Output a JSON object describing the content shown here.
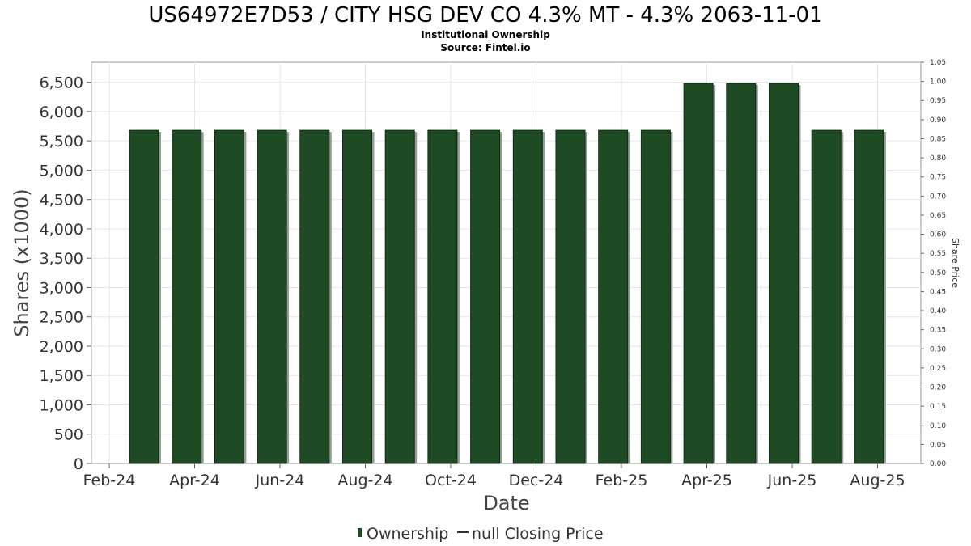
{
  "chart_data": {
    "type": "bar",
    "title": "US64972E7D53 / CITY HSG DEV CO 4.3% MT - 4.3% 2063-11-01",
    "subtitle_lines": [
      "Institutional Ownership",
      "Source: Fintel.io"
    ],
    "xlabel": "Date",
    "ylabel": "Shares (x1000)",
    "y2label": "Share Price",
    "x_tick_labels": [
      "Feb-24",
      "Apr-24",
      "Jun-24",
      "Aug-24",
      "Oct-24",
      "Dec-24",
      "Feb-25",
      "Apr-25",
      "Jun-25",
      "Aug-25"
    ],
    "y_tick_labels": [
      "0",
      "500",
      "1,000",
      "1,500",
      "2,000",
      "2,500",
      "3,000",
      "3,500",
      "4,000",
      "4,500",
      "5,000",
      "5,500",
      "6,000",
      "6,500"
    ],
    "y_ticks": [
      0,
      500,
      1000,
      1500,
      2000,
      2500,
      3000,
      3500,
      4000,
      4500,
      5000,
      5500,
      6000,
      6500
    ],
    "y2_tick_labels": [
      "0.00",
      "0.05",
      "0.10",
      "0.15",
      "0.20",
      "0.25",
      "0.30",
      "0.35",
      "0.40",
      "0.45",
      "0.50",
      "0.55",
      "0.60",
      "0.65",
      "0.70",
      "0.75",
      "0.80",
      "0.85",
      "0.90",
      "0.95",
      "1.00",
      "1.05"
    ],
    "y2_ticks": [
      0,
      0.05,
      0.1,
      0.15,
      0.2,
      0.25,
      0.3,
      0.35,
      0.4,
      0.45,
      0.5,
      0.55,
      0.6,
      0.65,
      0.7,
      0.75,
      0.8,
      0.85,
      0.9,
      0.95,
      1.0,
      1.05
    ],
    "ylim": [
      0,
      6840
    ],
    "y2lim": [
      0,
      1.05
    ],
    "grid": true,
    "legend_position": "bottom-center",
    "series": [
      {
        "name": "Ownership",
        "color": "#1e4a24",
        "values": [
          5680,
          5680,
          5680,
          5680,
          5680,
          5680,
          5680,
          5680,
          5680,
          5680,
          5680,
          5680,
          5680,
          6480,
          6480,
          6480,
          5680,
          5680
        ]
      }
    ],
    "legend": {
      "ownership_label": "Ownership",
      "price_label": "null Closing Price"
    }
  }
}
